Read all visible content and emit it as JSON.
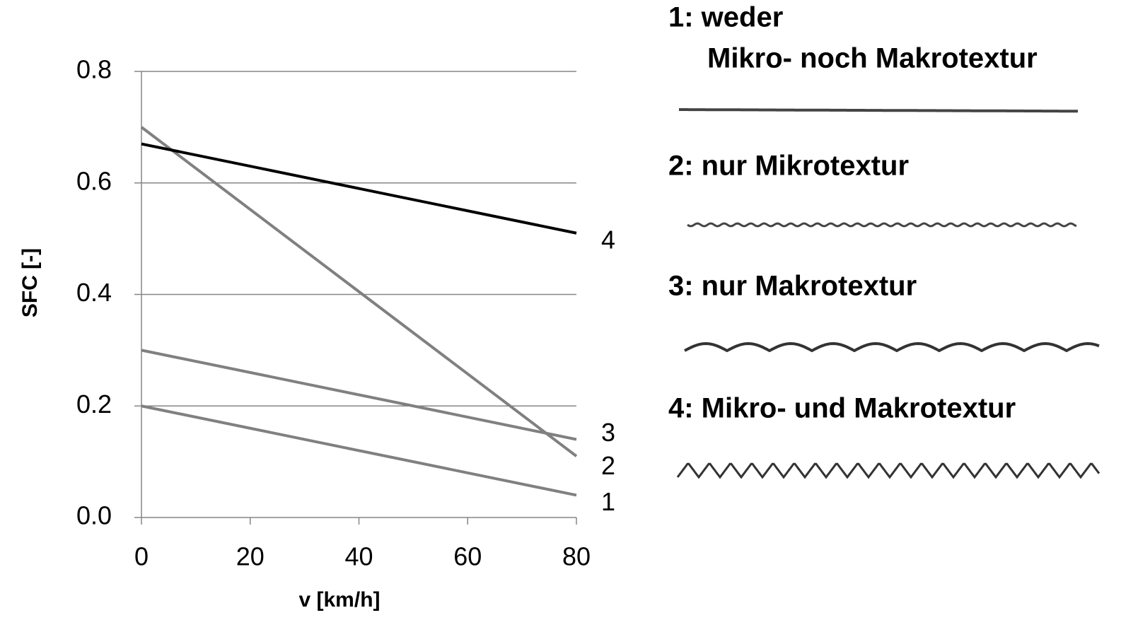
{
  "chart_data": {
    "type": "line",
    "x_label": "v [km/h]",
    "y_label": "SFC [-]",
    "x": [
      0,
      80
    ],
    "series": [
      {
        "name": "1",
        "color": "#808080",
        "values": [
          0.2,
          0.04
        ]
      },
      {
        "name": "2",
        "color": "#808080",
        "values": [
          0.7,
          0.11
        ]
      },
      {
        "name": "3",
        "color": "#808080",
        "values": [
          0.3,
          0.14
        ]
      },
      {
        "name": "4",
        "color": "#000000",
        "values": [
          0.67,
          0.51
        ]
      }
    ],
    "xlim": [
      0,
      80
    ],
    "xticks": [
      0,
      20,
      40,
      60,
      80
    ],
    "ylim": [
      0,
      0.8
    ],
    "yticks": [
      {
        "value": 0,
        "label": "0.0"
      },
      0.2,
      0.4,
      0.6,
      0.8
    ],
    "grid": true,
    "texture_labels": [
      [
        "1: weder",
        "Mikro- noch Makrotextur"
      ],
      [
        "2: nur Mikrotextur"
      ],
      [
        "3: nur Makrotextur"
      ],
      [
        "4: Mikro- und Makrotextur"
      ]
    ]
  }
}
